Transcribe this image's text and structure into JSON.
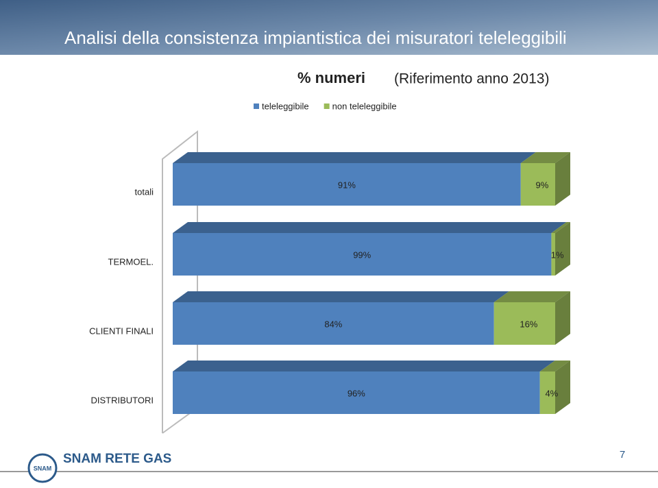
{
  "slide": {
    "title": "Analisi della consistenza impiantistica dei misuratori teleleggibili",
    "logo_mark": "SNAM",
    "logo_text": "SNAM RETE GAS",
    "page_number": "7"
  },
  "chart_data": {
    "type": "bar",
    "orientation": "horizontal",
    "stacked": true,
    "title": "% numeri",
    "subtitle": "(Riferimento anno 2013)",
    "categories": [
      "totali",
      "TERMOEL.",
      "CLIENTI FINALI",
      "DISTRIBUTORI"
    ],
    "series": [
      {
        "name": "teleleggibile",
        "color": "#4f81bd",
        "values": [
          91,
          99,
          84,
          96
        ],
        "value_labels": [
          "91%",
          "99%",
          "84%",
          "96%"
        ]
      },
      {
        "name": "non teleleggibile",
        "color": "#9bbb59",
        "values": [
          9,
          1,
          16,
          4
        ],
        "value_labels": [
          "9%",
          "1%",
          "16%",
          "4%"
        ]
      }
    ],
    "xlim": [
      0,
      100
    ],
    "legend": "top"
  }
}
